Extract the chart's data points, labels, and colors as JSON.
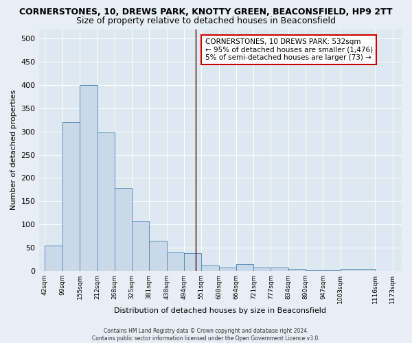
{
  "title": "CORNERSTONES, 10, DREWS PARK, KNOTTY GREEN, BEACONSFIELD, HP9 2TT",
  "subtitle": "Size of property relative to detached houses in Beaconsfield",
  "xlabel": "Distribution of detached houses by size in Beaconsfield",
  "ylabel": "Number of detached properties",
  "footer": "Contains HM Land Registry data © Crown copyright and database right 2024.\nContains public sector information licensed under the Open Government Licence v3.0.",
  "bin_edges": [
    42,
    99,
    155,
    212,
    268,
    325,
    381,
    438,
    494,
    551,
    608,
    664,
    721,
    777,
    834,
    890,
    947,
    1003,
    1116,
    1173
  ],
  "bar_heights": [
    55,
    320,
    400,
    298,
    178,
    108,
    65,
    40,
    38,
    12,
    8,
    15,
    8,
    8,
    5,
    2,
    1,
    5,
    0
  ],
  "bar_color": "#c9d9ea",
  "bar_edge_color": "#5b8db8",
  "vline_x": 532,
  "vline_color": "#4a0000",
  "annotation_text": "CORNERSTONES, 10 DREWS PARK: 532sqm\n← 95% of detached houses are smaller (1,476)\n5% of semi-detached houses are larger (73) →",
  "annotation_box_facecolor": "#ffffff",
  "annotation_box_edgecolor": "#cc0000",
  "ylim": [
    0,
    520
  ],
  "yticks": [
    0,
    50,
    100,
    150,
    200,
    250,
    300,
    350,
    400,
    450,
    500
  ],
  "tick_labels": [
    "42sqm",
    "99sqm",
    "155sqm",
    "212sqm",
    "268sqm",
    "325sqm",
    "381sqm",
    "438sqm",
    "494sqm",
    "551sqm",
    "608sqm",
    "664sqm",
    "721sqm",
    "777sqm",
    "834sqm",
    "890sqm",
    "947sqm",
    "1003sqm",
    "1116sqm",
    "1173sqm"
  ],
  "fig_bg_color": "#e8eef5",
  "ax_bg_color": "#dde8f0",
  "grid_color": "#ffffff",
  "title_fontsize": 9,
  "subtitle_fontsize": 9,
  "ylabel_fontsize": 8,
  "xlabel_fontsize": 8,
  "footer_fontsize": 5.5,
  "tick_fontsize": 6.5,
  "annotation_fontsize": 7.5
}
